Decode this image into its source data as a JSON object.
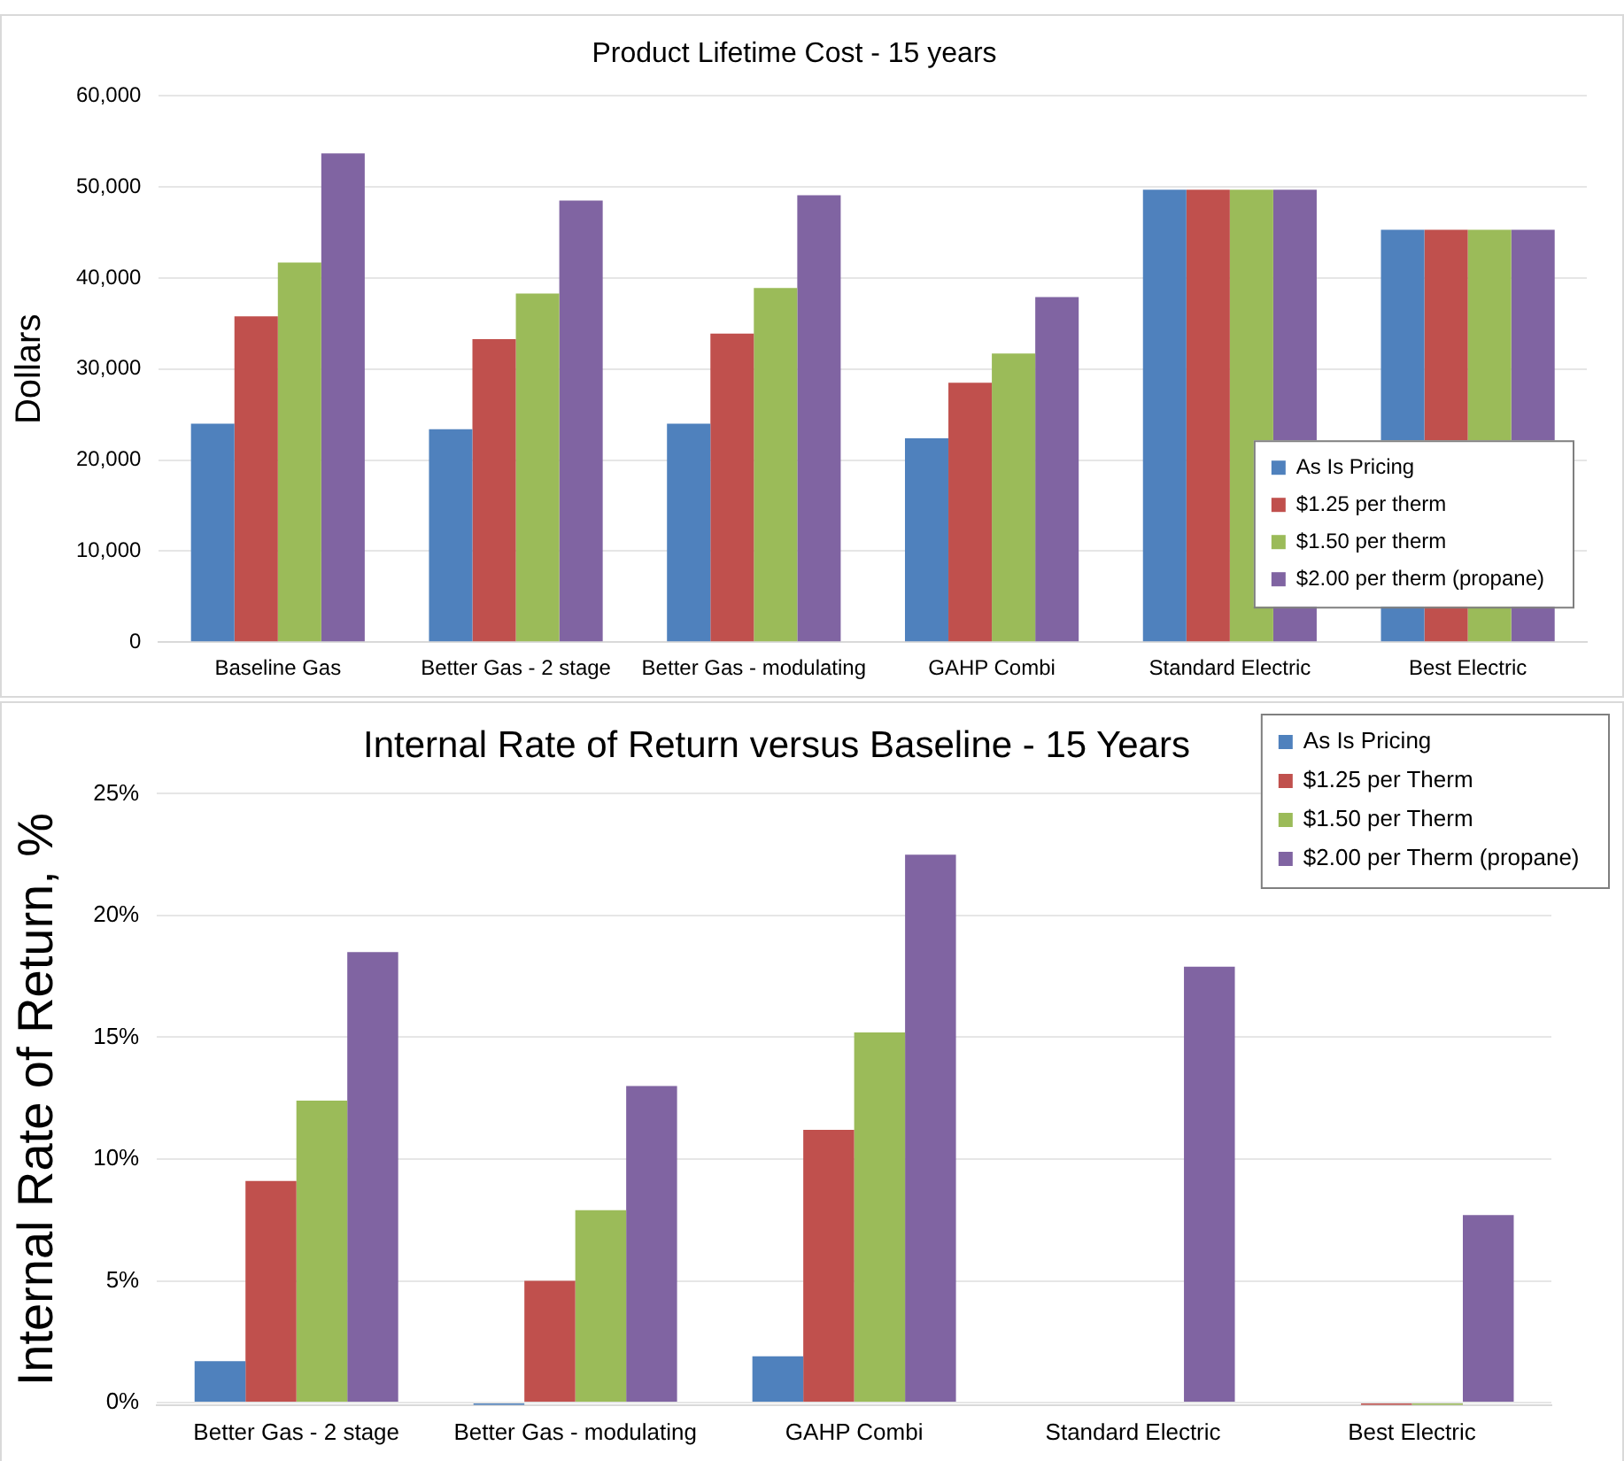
{
  "chart_data": [
    {
      "type": "bar",
      "title": "Product Lifetime Cost - 15 years",
      "ylabel": "Dollars",
      "categories": [
        "Baseline Gas",
        "Better Gas - 2 stage",
        "Better Gas - modulating",
        "GAHP Combi",
        "Standard Electric",
        "Best Electric"
      ],
      "series": [
        {
          "name": "As Is Pricing",
          "color": "#4f81bd",
          "values": [
            24000,
            23400,
            24000,
            22400,
            49700,
            45300
          ]
        },
        {
          "name": "$1.25 per therm",
          "color": "#c0504d",
          "values": [
            35800,
            33300,
            33900,
            28500,
            49700,
            45300
          ]
        },
        {
          "name": "$1.50 per therm",
          "color": "#9bbb59",
          "values": [
            41700,
            38300,
            38900,
            31700,
            49700,
            45300
          ]
        },
        {
          "name": "$2.00 per therm (propane)",
          "color": "#8064a2",
          "values": [
            53700,
            48500,
            49100,
            37900,
            49700,
            45300
          ]
        }
      ],
      "ylim": [
        0,
        60000
      ],
      "yticks": [
        0,
        {
          "value": 10000,
          "label": "10,000"
        },
        {
          "value": 20000,
          "label": "20,000"
        },
        {
          "value": 30000,
          "label": "30,000"
        },
        {
          "value": 40000,
          "label": "40,000"
        },
        {
          "value": 50000,
          "label": "50,000"
        },
        {
          "value": 60000,
          "label": "60,000"
        }
      ],
      "grid": "y",
      "legend": "bottom right"
    },
    {
      "type": "bar",
      "title": "Internal Rate of Return versus Baseline - 15 Years",
      "ylabel": "Internal Rate of Return, %",
      "categories": [
        "Better Gas - 2 stage",
        "Better Gas - modulating",
        "GAHP Combi",
        "Standard Electric",
        "Best Electric"
      ],
      "series": [
        {
          "name": "As Is Pricing",
          "color": "#4f81bd",
          "values": [
            1.7,
            -0.1,
            1.9,
            0,
            0
          ]
        },
        {
          "name": "$1.25 per Therm",
          "color": "#c0504d",
          "values": [
            9.1,
            5.0,
            11.2,
            0,
            -0.1
          ]
        },
        {
          "name": "$1.50 per Therm",
          "color": "#9bbb59",
          "values": [
            12.4,
            7.9,
            15.2,
            0,
            -0.1
          ]
        },
        {
          "name": "$2.00 per Therm (propane)",
          "color": "#8064a2",
          "values": [
            18.5,
            13.0,
            22.5,
            17.9,
            7.7
          ]
        }
      ],
      "ylim": [
        -0.1,
        25
      ],
      "yticks": [
        {
          "value": 0,
          "label": "0%"
        },
        {
          "value": 5,
          "label": "5%"
        },
        {
          "value": 10,
          "label": "10%"
        },
        {
          "value": 15,
          "label": "15%"
        },
        {
          "value": 20,
          "label": "20%"
        },
        {
          "value": 25,
          "label": "25%"
        }
      ],
      "grid": "y",
      "legend": "top right"
    }
  ]
}
